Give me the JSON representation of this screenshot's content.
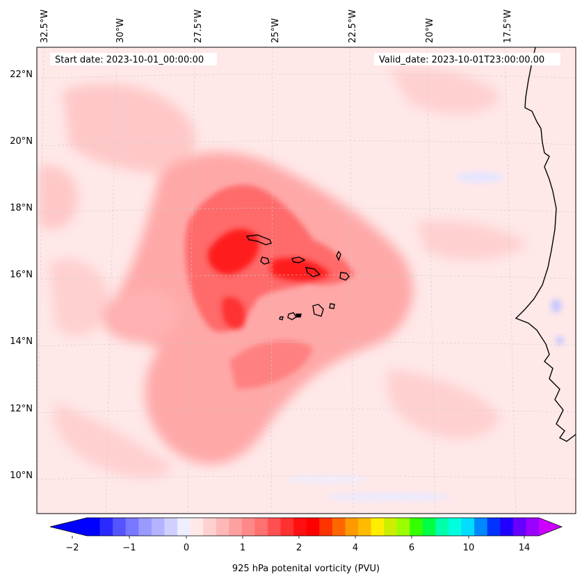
{
  "header": {
    "start_date": "Start date: 2023-10-01_00:00:00",
    "valid_date": "Valid_date: 2023-10-01T23:00:00.00"
  },
  "lon_labels": [
    "32.5°W",
    "30°W",
    "27.5°W",
    "25°W",
    "22.5°W",
    "20°W",
    "17.5°W"
  ],
  "lat_labels": [
    "22°N",
    "20°N",
    "18°N",
    "16°N",
    "14°N",
    "12°N",
    "10°N"
  ],
  "colorbar": {
    "label": "925 hPa potenital vorticity (PVU)",
    "tick_labels": [
      "−2",
      "−1",
      "0",
      "1",
      "2",
      "4",
      "6",
      "10",
      "14"
    ],
    "colors": [
      "#0000ff",
      "#2a2aff",
      "#5555ff",
      "#7777ff",
      "#9999ff",
      "#b3b3ff",
      "#d0d0ff",
      "#eeeeff",
      "#ffe8e8",
      "#ffd0d0",
      "#ffb8b8",
      "#ffa0a0",
      "#ff8888",
      "#ff7070",
      "#ff5050",
      "#ff3030",
      "#ff1010",
      "#ff0000",
      "#ff3300",
      "#ff6600",
      "#ff9900",
      "#ffbb00",
      "#ffee00",
      "#ccee00",
      "#99ff00",
      "#33ff00",
      "#00ff44",
      "#00ffaa",
      "#00ffdd",
      "#00ddff",
      "#0088ff",
      "#0033ff",
      "#2200ff",
      "#6600ff",
      "#9900ff"
    ],
    "under_color": "#0000ff",
    "over_color": "#cc00ff"
  }
}
